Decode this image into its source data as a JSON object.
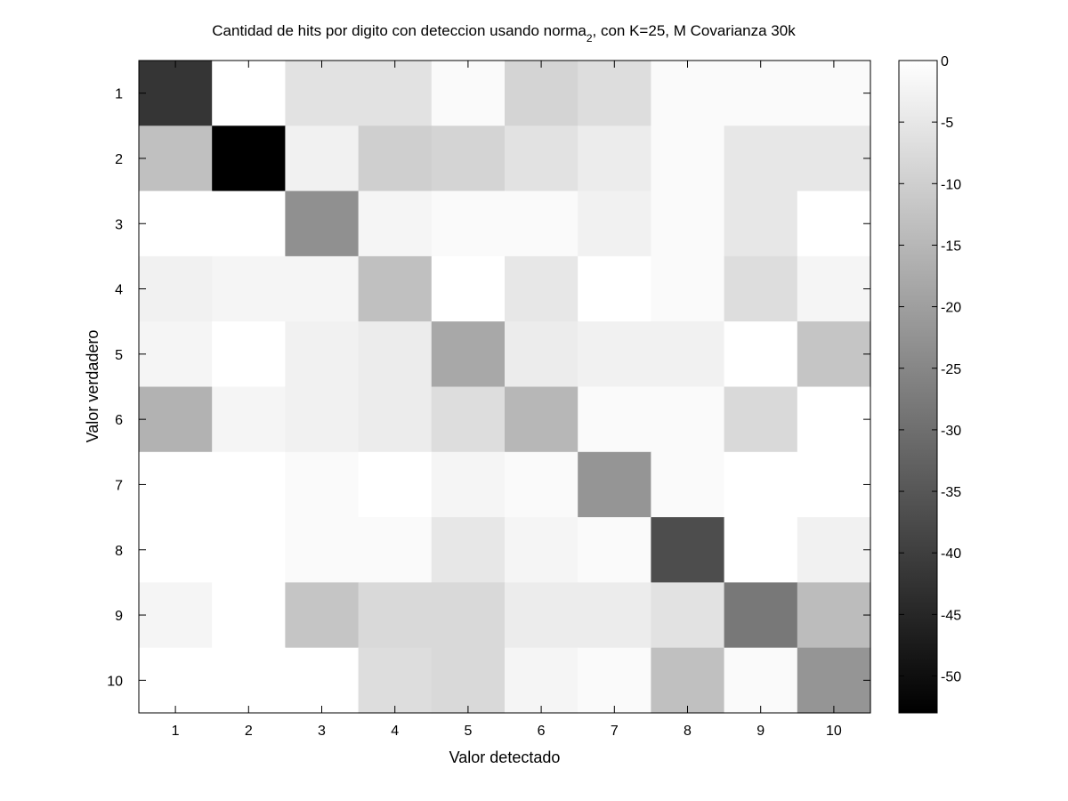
{
  "chart_data": {
    "type": "heatmap",
    "title": {
      "before_subscript": "Cantidad de hits por digito con deteccion usando norma",
      "subscript": "2",
      "after_subscript": ", con K=25, M Covarianza 30k"
    },
    "xlabel": "Valor detectado",
    "ylabel": "Valor verdadero",
    "x_categories": [
      "1",
      "2",
      "3",
      "4",
      "5",
      "6",
      "7",
      "8",
      "9",
      "10"
    ],
    "y_categories": [
      "1",
      "2",
      "3",
      "4",
      "5",
      "6",
      "7",
      "8",
      "9",
      "10"
    ],
    "colormap": "gray",
    "color_range": [
      -53,
      0
    ],
    "colorbar_ticks": [
      "0",
      "-5",
      "-10",
      "-15",
      "-20",
      "-25",
      "-30",
      "-35",
      "-40",
      "-45",
      "-50"
    ],
    "colorbar_tick_values": [
      0,
      -5,
      -10,
      -15,
      -20,
      -25,
      -30,
      -35,
      -40,
      -45,
      -50
    ],
    "values": [
      [
        -42,
        0,
        -6,
        -6,
        -1,
        -9,
        -7,
        -1,
        -1,
        -1
      ],
      [
        -13,
        -53,
        -3,
        -10,
        -9,
        -6,
        -4,
        -1,
        -5,
        -5
      ],
      [
        0,
        0,
        -23,
        -2,
        -1,
        -1,
        -3,
        -1,
        -5,
        0
      ],
      [
        -3,
        -2,
        -2,
        -13,
        0,
        -5,
        0,
        -1,
        -7,
        -2
      ],
      [
        -2,
        0,
        -3,
        -4,
        -18,
        -4,
        -3,
        -3,
        0,
        -12
      ],
      [
        -16,
        -2,
        -3,
        -4,
        -7,
        -15,
        -1,
        -1,
        -8,
        0
      ],
      [
        0,
        0,
        -1,
        0,
        -2,
        -1,
        -22,
        -1,
        0,
        0
      ],
      [
        0,
        0,
        -1,
        -1,
        -5,
        -2,
        -1,
        -37,
        0,
        -3
      ],
      [
        -2,
        0,
        -12,
        -8,
        -8,
        -4,
        -4,
        -6,
        -28,
        -14
      ],
      [
        0,
        0,
        0,
        -7,
        -8,
        -2,
        -1,
        -13,
        -1,
        -22
      ]
    ]
  }
}
